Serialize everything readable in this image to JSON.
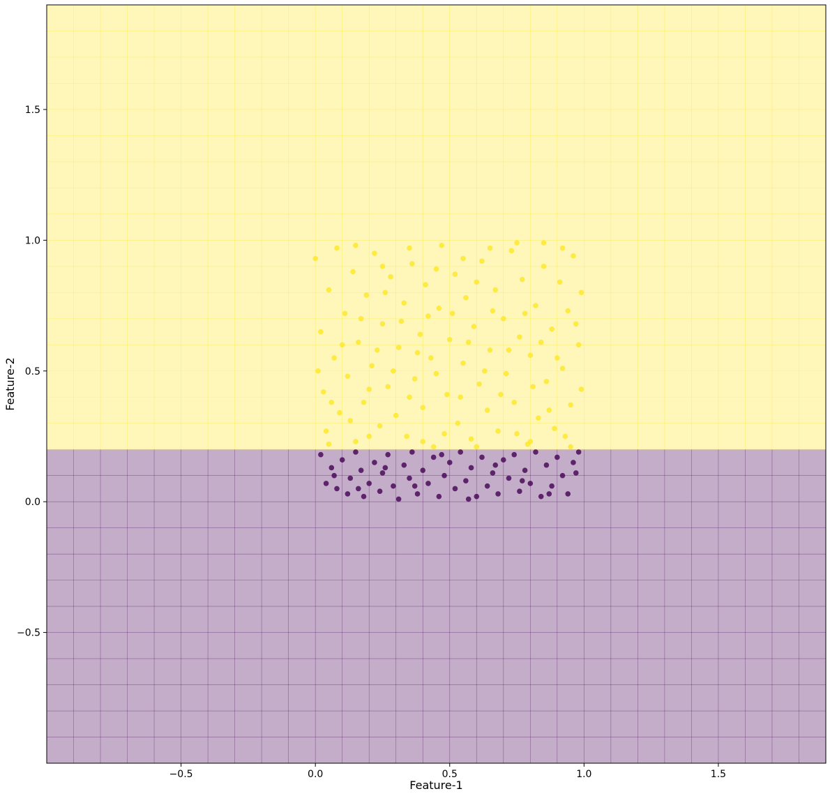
{
  "chart_data": {
    "type": "scatter",
    "title": "",
    "xlabel": "Feature-1",
    "ylabel": "Feature-2",
    "xlim": [
      -1,
      1.9
    ],
    "ylim": [
      -1,
      1.9
    ],
    "xticks": [
      -0.5,
      0.0,
      0.5,
      1.0,
      1.5
    ],
    "yticks": [
      -0.5,
      0.0,
      0.5,
      1.0,
      1.5
    ],
    "xtick_labels": [
      "−0.5",
      "0.0",
      "0.5",
      "1.0",
      "1.5"
    ],
    "ytick_labels": [
      "−0.5",
      "0.0",
      "0.5",
      "1.0",
      "1.5"
    ],
    "grid": true,
    "decision_regions": [
      {
        "class": 0,
        "y_range": [
          -1,
          0.2
        ],
        "color": "#440154"
      },
      {
        "class": 1,
        "y_range": [
          0.2,
          1.9
        ],
        "color": "#fde725"
      }
    ],
    "decision_boundary_y": 0.2,
    "mesh_step": 0.1,
    "series": [
      {
        "class": 0,
        "color": "#440154",
        "points": [
          [
            0.02,
            0.18
          ],
          [
            0.04,
            0.07
          ],
          [
            0.06,
            0.13
          ],
          [
            0.08,
            0.05
          ],
          [
            0.1,
            0.16
          ],
          [
            0.12,
            0.03
          ],
          [
            0.13,
            0.09
          ],
          [
            0.15,
            0.19
          ],
          [
            0.17,
            0.12
          ],
          [
            0.18,
            0.02
          ],
          [
            0.2,
            0.07
          ],
          [
            0.22,
            0.15
          ],
          [
            0.24,
            0.04
          ],
          [
            0.25,
            0.11
          ],
          [
            0.27,
            0.18
          ],
          [
            0.29,
            0.06
          ],
          [
            0.31,
            0.01
          ],
          [
            0.33,
            0.14
          ],
          [
            0.35,
            0.09
          ],
          [
            0.36,
            0.19
          ],
          [
            0.38,
            0.03
          ],
          [
            0.4,
            0.12
          ],
          [
            0.42,
            0.07
          ],
          [
            0.44,
            0.17
          ],
          [
            0.46,
            0.02
          ],
          [
            0.48,
            0.1
          ],
          [
            0.5,
            0.15
          ],
          [
            0.52,
            0.05
          ],
          [
            0.54,
            0.19
          ],
          [
            0.56,
            0.08
          ],
          [
            0.58,
            0.13
          ],
          [
            0.6,
            0.02
          ],
          [
            0.62,
            0.17
          ],
          [
            0.64,
            0.06
          ],
          [
            0.66,
            0.11
          ],
          [
            0.68,
            0.03
          ],
          [
            0.7,
            0.16
          ],
          [
            0.72,
            0.09
          ],
          [
            0.74,
            0.18
          ],
          [
            0.76,
            0.04
          ],
          [
            0.78,
            0.12
          ],
          [
            0.8,
            0.07
          ],
          [
            0.82,
            0.19
          ],
          [
            0.84,
            0.02
          ],
          [
            0.86,
            0.14
          ],
          [
            0.88,
            0.06
          ],
          [
            0.9,
            0.17
          ],
          [
            0.92,
            0.1
          ],
          [
            0.94,
            0.03
          ],
          [
            0.96,
            0.15
          ],
          [
            0.98,
            0.19
          ],
          [
            0.07,
            0.1
          ],
          [
            0.16,
            0.05
          ],
          [
            0.26,
            0.13
          ],
          [
            0.37,
            0.06
          ],
          [
            0.47,
            0.18
          ],
          [
            0.57,
            0.01
          ],
          [
            0.67,
            0.14
          ],
          [
            0.77,
            0.08
          ],
          [
            0.87,
            0.03
          ],
          [
            0.97,
            0.11
          ]
        ]
      },
      {
        "class": 1,
        "color": "#fde725",
        "points": [
          [
            0.0,
            0.93
          ],
          [
            0.02,
            0.65
          ],
          [
            0.03,
            0.42
          ],
          [
            0.04,
            0.27
          ],
          [
            0.05,
            0.81
          ],
          [
            0.07,
            0.55
          ],
          [
            0.08,
            0.97
          ],
          [
            0.09,
            0.34
          ],
          [
            0.11,
            0.72
          ],
          [
            0.12,
            0.48
          ],
          [
            0.14,
            0.88
          ],
          [
            0.15,
            0.23
          ],
          [
            0.16,
            0.61
          ],
          [
            0.18,
            0.38
          ],
          [
            0.19,
            0.79
          ],
          [
            0.21,
            0.52
          ],
          [
            0.22,
            0.95
          ],
          [
            0.24,
            0.29
          ],
          [
            0.25,
            0.68
          ],
          [
            0.27,
            0.44
          ],
          [
            0.28,
            0.86
          ],
          [
            0.3,
            0.33
          ],
          [
            0.31,
            0.59
          ],
          [
            0.33,
            0.76
          ],
          [
            0.34,
            0.25
          ],
          [
            0.36,
            0.91
          ],
          [
            0.37,
            0.47
          ],
          [
            0.39,
            0.64
          ],
          [
            0.4,
            0.36
          ],
          [
            0.41,
            0.83
          ],
          [
            0.43,
            0.55
          ],
          [
            0.44,
            0.21
          ],
          [
            0.46,
            0.74
          ],
          [
            0.47,
            0.98
          ],
          [
            0.49,
            0.41
          ],
          [
            0.5,
            0.62
          ],
          [
            0.52,
            0.87
          ],
          [
            0.53,
            0.3
          ],
          [
            0.55,
            0.53
          ],
          [
            0.56,
            0.78
          ],
          [
            0.58,
            0.24
          ],
          [
            0.59,
            0.67
          ],
          [
            0.61,
            0.45
          ],
          [
            0.62,
            0.92
          ],
          [
            0.64,
            0.35
          ],
          [
            0.65,
            0.58
          ],
          [
            0.67,
            0.81
          ],
          [
            0.68,
            0.27
          ],
          [
            0.7,
            0.7
          ],
          [
            0.71,
            0.49
          ],
          [
            0.73,
            0.96
          ],
          [
            0.74,
            0.38
          ],
          [
            0.76,
            0.63
          ],
          [
            0.77,
            0.85
          ],
          [
            0.79,
            0.22
          ],
          [
            0.8,
            0.56
          ],
          [
            0.82,
            0.75
          ],
          [
            0.83,
            0.32
          ],
          [
            0.85,
            0.9
          ],
          [
            0.86,
            0.46
          ],
          [
            0.88,
            0.66
          ],
          [
            0.89,
            0.28
          ],
          [
            0.91,
            0.84
          ],
          [
            0.92,
            0.51
          ],
          [
            0.94,
            0.73
          ],
          [
            0.95,
            0.37
          ],
          [
            0.96,
            0.94
          ],
          [
            0.98,
            0.6
          ],
          [
            0.99,
            0.43
          ],
          [
            0.99,
            0.8
          ],
          [
            0.01,
            0.5
          ],
          [
            0.06,
            0.38
          ],
          [
            0.1,
            0.6
          ],
          [
            0.13,
            0.31
          ],
          [
            0.17,
            0.7
          ],
          [
            0.2,
            0.43
          ],
          [
            0.23,
            0.58
          ],
          [
            0.26,
            0.8
          ],
          [
            0.29,
            0.5
          ],
          [
            0.32,
            0.69
          ],
          [
            0.35,
            0.4
          ],
          [
            0.38,
            0.57
          ],
          [
            0.42,
            0.71
          ],
          [
            0.45,
            0.49
          ],
          [
            0.48,
            0.26
          ],
          [
            0.51,
            0.72
          ],
          [
            0.54,
            0.4
          ],
          [
            0.57,
            0.61
          ],
          [
            0.6,
            0.84
          ],
          [
            0.63,
            0.5
          ],
          [
            0.66,
            0.73
          ],
          [
            0.69,
            0.41
          ],
          [
            0.72,
            0.58
          ],
          [
            0.75,
            0.26
          ],
          [
            0.78,
            0.72
          ],
          [
            0.81,
            0.44
          ],
          [
            0.84,
            0.61
          ],
          [
            0.87,
            0.35
          ],
          [
            0.9,
            0.55
          ],
          [
            0.93,
            0.25
          ],
          [
            0.97,
            0.68
          ],
          [
            0.55,
            0.93
          ],
          [
            0.45,
            0.89
          ],
          [
            0.35,
            0.97
          ],
          [
            0.25,
            0.9
          ],
          [
            0.15,
            0.98
          ],
          [
            0.65,
            0.97
          ],
          [
            0.75,
            0.99
          ],
          [
            0.85,
            0.99
          ],
          [
            0.92,
            0.97
          ],
          [
            0.05,
            0.22
          ],
          [
            0.2,
            0.25
          ],
          [
            0.4,
            0.23
          ],
          [
            0.6,
            0.21
          ],
          [
            0.8,
            0.23
          ],
          [
            0.95,
            0.21
          ]
        ]
      }
    ]
  }
}
